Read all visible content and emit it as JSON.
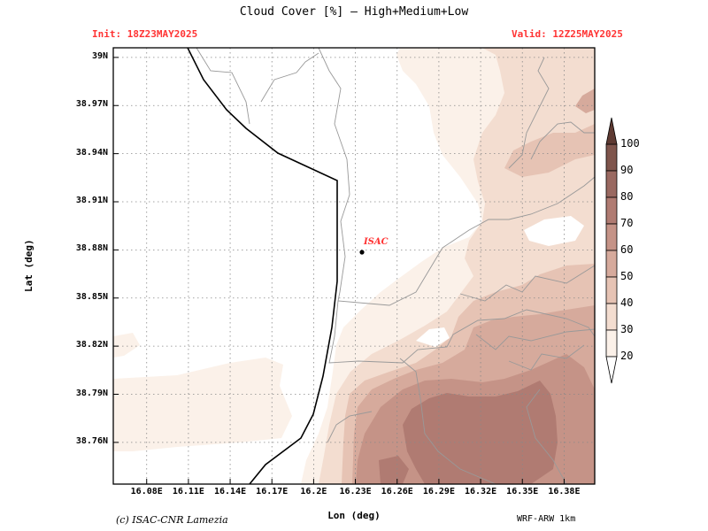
{
  "title": "Cloud Cover [%] — High+Medium+Low",
  "init": "Init: 18Z23MAY2025",
  "valid": "Valid: 12Z25MAY2025",
  "xlabel": "Lon (deg)",
  "ylabel": "Lat (deg)",
  "credit": "(c) ISAC-CNR Lamezia",
  "model": "WRF-ARW 1km",
  "marker": {
    "label": "ISAC",
    "lon": 16.234,
    "lat": 38.88,
    "color": "#ff3333"
  },
  "map": {
    "lon_range": [
      16.056,
      16.402
    ],
    "lat_range": [
      38.734,
      39.006
    ],
    "lon_ticks": [
      "16.08E",
      "16.11E",
      "16.14E",
      "16.17E",
      "16.2E",
      "16.23E",
      "16.26E",
      "16.29E",
      "16.32E",
      "16.35E",
      "16.38E"
    ],
    "lon_values": [
      16.08,
      16.11,
      16.14,
      16.17,
      16.2,
      16.23,
      16.26,
      16.29,
      16.32,
      16.35,
      16.38
    ],
    "lat_ticks": [
      "39N",
      "38.97N",
      "38.94N",
      "38.91N",
      "38.88N",
      "38.85N",
      "38.82N",
      "38.79N",
      "38.76N"
    ],
    "lat_values": [
      39.0,
      38.97,
      38.94,
      38.91,
      38.88,
      38.85,
      38.82,
      38.79,
      38.76
    ],
    "grid": "dotted"
  },
  "colorbar": {
    "levels": [
      "100",
      "90",
      "80",
      "70",
      "60",
      "50",
      "40",
      "30",
      "20"
    ],
    "colors": [
      "#ffffff",
      "#fbf1e9",
      "#f3ddd0",
      "#e6c3b4",
      "#d6aa9c",
      "#c59387",
      "#b07b72",
      "#9a6961",
      "#7f554c",
      "#5e3a32"
    ]
  },
  "legend_colors": {
    "coastline": "#000000",
    "boundaries": "#999999"
  }
}
